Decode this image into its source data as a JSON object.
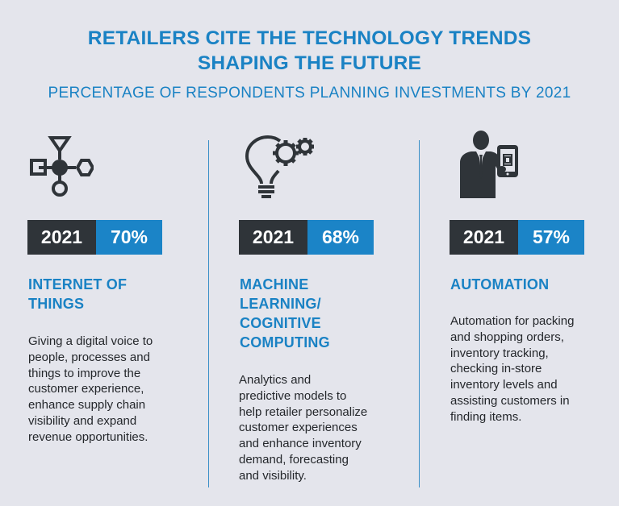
{
  "header": {
    "title_line1": "RETAILERS CITE THE TECHNOLOGY TRENDS",
    "title_line2": "SHAPING THE FUTURE",
    "subtitle": "PERCENTAGE OF RESPONDENTS PLANNING INVESTMENTS BY 2021"
  },
  "colors": {
    "accent": "#1b84c7",
    "dark": "#2f3439",
    "background": "#e4e5ec"
  },
  "columns": [
    {
      "icon": "network-nodes-icon",
      "year": "2021",
      "percent": "70%",
      "heading_lines": [
        "INTERNET OF",
        "THINGS"
      ],
      "description_lines": [
        "Giving a digital voice to",
        "people, processes and",
        "things to improve the",
        "customer experience,",
        "enhance supply chain",
        "visibility and expand",
        "revenue opportunities."
      ]
    },
    {
      "icon": "lightbulb-gears-icon",
      "year": "2021",
      "percent": "68%",
      "heading_lines": [
        "MACHINE",
        "LEARNING/",
        "COGNITIVE",
        "COMPUTING"
      ],
      "description_lines": [
        "Analytics and",
        "predictive models to",
        "help retailer personalize",
        "customer experiences",
        "and enhance inventory",
        "demand, forecasting",
        "and visibility."
      ]
    },
    {
      "icon": "businessman-tablet-icon",
      "year": "2021",
      "percent": "57%",
      "heading_lines": [
        "AUTOMATION"
      ],
      "description_lines": [
        "Automation for packing",
        "and shopping orders,",
        "inventory tracking,",
        "checking in-store",
        "inventory levels and",
        "assisting customers in",
        "finding items."
      ]
    }
  ]
}
